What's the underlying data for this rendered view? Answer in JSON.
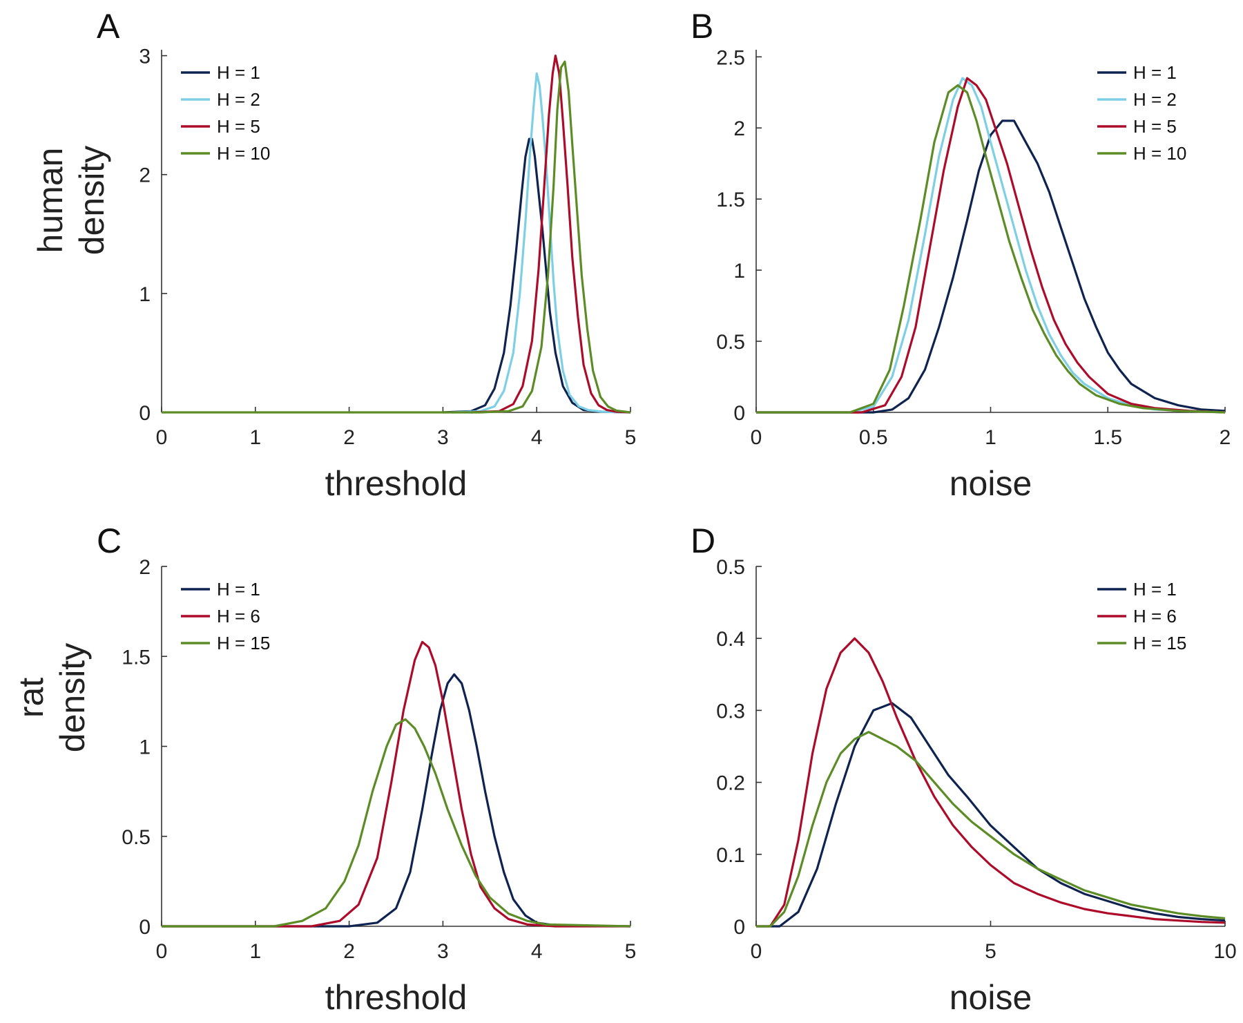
{
  "figure": {
    "row_labels": [
      {
        "line1": "human",
        "line2": "density"
      },
      {
        "line1": "rat",
        "line2": "density"
      }
    ]
  },
  "colors": {
    "H1": "#0f2350",
    "H2": "#7ccfe5",
    "H5_H6": "#ad0b2a",
    "H10_H15": "#5c8c25"
  },
  "chart_data": [
    {
      "panel": "A",
      "type": "line",
      "xlabel": "threshold",
      "ylabel": "",
      "xlim": [
        0,
        5
      ],
      "ylim": [
        0,
        3.05
      ],
      "xticks": [
        0,
        1,
        2,
        3,
        4,
        5
      ],
      "yticks": [
        0,
        1,
        2,
        3
      ],
      "legend_position": "top-left",
      "series": [
        {
          "name": "H = 1",
          "color": "#0f2350",
          "x": [
            3.0,
            3.3,
            3.45,
            3.55,
            3.65,
            3.72,
            3.78,
            3.84,
            3.88,
            3.92,
            3.95,
            3.98,
            4.02,
            4.06,
            4.1,
            4.14,
            4.2,
            4.28,
            4.38,
            4.5,
            4.7,
            5.0
          ],
          "y": [
            0,
            0.01,
            0.06,
            0.2,
            0.5,
            0.9,
            1.35,
            1.85,
            2.15,
            2.3,
            2.3,
            2.15,
            1.85,
            1.55,
            1.2,
            0.85,
            0.5,
            0.22,
            0.08,
            0.02,
            0.005,
            0
          ]
        },
        {
          "name": "H = 2",
          "color": "#7ccfe5",
          "x": [
            3.1,
            3.4,
            3.55,
            3.65,
            3.75,
            3.82,
            3.88,
            3.93,
            3.97,
            4.0,
            4.03,
            4.06,
            4.1,
            4.14,
            4.18,
            4.22,
            4.28,
            4.35,
            4.45,
            4.55,
            4.7,
            5.0
          ],
          "y": [
            0,
            0.01,
            0.05,
            0.18,
            0.5,
            1.0,
            1.6,
            2.2,
            2.6,
            2.85,
            2.75,
            2.5,
            2.1,
            1.6,
            1.1,
            0.7,
            0.35,
            0.15,
            0.05,
            0.02,
            0.005,
            0
          ]
        },
        {
          "name": "H = 5",
          "color": "#ad0b2a",
          "x": [
            3.3,
            3.6,
            3.75,
            3.85,
            3.95,
            4.02,
            4.08,
            4.13,
            4.17,
            4.2,
            4.24,
            4.28,
            4.33,
            4.38,
            4.44,
            4.5,
            4.58,
            4.66,
            4.75,
            4.85,
            5.0
          ],
          "y": [
            0,
            0.01,
            0.07,
            0.22,
            0.6,
            1.2,
            1.9,
            2.5,
            2.85,
            3.0,
            2.85,
            2.45,
            1.9,
            1.3,
            0.8,
            0.4,
            0.16,
            0.06,
            0.02,
            0.005,
            0
          ]
        },
        {
          "name": "H = 10",
          "color": "#5c8c25",
          "x": [
            3.4,
            3.7,
            3.85,
            3.95,
            4.05,
            4.12,
            4.18,
            4.22,
            4.26,
            4.3,
            4.34,
            4.38,
            4.43,
            4.48,
            4.54,
            4.6,
            4.68,
            4.76,
            4.85,
            5.0
          ],
          "y": [
            0,
            0.01,
            0.05,
            0.18,
            0.55,
            1.15,
            1.9,
            2.55,
            2.9,
            2.95,
            2.7,
            2.25,
            1.7,
            1.15,
            0.7,
            0.35,
            0.13,
            0.05,
            0.015,
            0
          ]
        },
        {
          "name": "",
          "color": "#5c8c25",
          "x": [
            0,
            3.4
          ],
          "y": [
            0,
            0
          ]
        }
      ]
    },
    {
      "panel": "B",
      "type": "line",
      "xlabel": "noise",
      "ylabel": "",
      "xlim": [
        0,
        2
      ],
      "ylim": [
        0,
        2.55
      ],
      "xticks": [
        0,
        0.5,
        1,
        1.5,
        2
      ],
      "yticks": [
        0,
        0.5,
        1,
        1.5,
        2,
        2.5
      ],
      "legend_position": "top-right",
      "series": [
        {
          "name": "H = 1",
          "color": "#0f2350",
          "x": [
            0,
            0.5,
            0.58,
            0.65,
            0.72,
            0.78,
            0.84,
            0.9,
            0.95,
            1.0,
            1.05,
            1.1,
            1.15,
            1.2,
            1.25,
            1.3,
            1.35,
            1.4,
            1.45,
            1.5,
            1.55,
            1.6,
            1.7,
            1.8,
            1.9,
            2.0
          ],
          "y": [
            0,
            0,
            0.02,
            0.1,
            0.3,
            0.6,
            0.95,
            1.35,
            1.7,
            1.95,
            2.05,
            2.05,
            1.9,
            1.75,
            1.55,
            1.3,
            1.05,
            0.8,
            0.6,
            0.42,
            0.3,
            0.2,
            0.1,
            0.05,
            0.02,
            0.01
          ]
        },
        {
          "name": "H = 2",
          "color": "#7ccfe5",
          "x": [
            0,
            0.4,
            0.5,
            0.58,
            0.65,
            0.72,
            0.78,
            0.84,
            0.88,
            0.92,
            0.96,
            1.0,
            1.05,
            1.1,
            1.15,
            1.2,
            1.25,
            1.3,
            1.35,
            1.4,
            1.5,
            1.6,
            1.7,
            1.85,
            2.0
          ],
          "y": [
            0,
            0,
            0.04,
            0.25,
            0.65,
            1.25,
            1.8,
            2.2,
            2.35,
            2.3,
            2.15,
            1.9,
            1.6,
            1.3,
            1.0,
            0.75,
            0.55,
            0.4,
            0.28,
            0.2,
            0.1,
            0.05,
            0.02,
            0.01,
            0
          ]
        },
        {
          "name": "H = 5",
          "color": "#ad0b2a",
          "x": [
            0,
            0.45,
            0.55,
            0.62,
            0.68,
            0.74,
            0.8,
            0.86,
            0.9,
            0.94,
            0.98,
            1.02,
            1.07,
            1.12,
            1.17,
            1.22,
            1.27,
            1.32,
            1.37,
            1.42,
            1.5,
            1.6,
            1.7,
            1.85,
            2.0
          ],
          "y": [
            0,
            0,
            0.05,
            0.25,
            0.6,
            1.15,
            1.7,
            2.15,
            2.35,
            2.3,
            2.2,
            2.0,
            1.75,
            1.45,
            1.15,
            0.88,
            0.65,
            0.48,
            0.35,
            0.25,
            0.13,
            0.06,
            0.03,
            0.01,
            0
          ]
        },
        {
          "name": "H = 10",
          "color": "#5c8c25",
          "x": [
            0,
            0.4,
            0.5,
            0.57,
            0.63,
            0.7,
            0.76,
            0.82,
            0.86,
            0.9,
            0.94,
            0.98,
            1.03,
            1.08,
            1.13,
            1.18,
            1.23,
            1.28,
            1.33,
            1.38,
            1.45,
            1.55,
            1.65,
            1.8,
            2.0
          ],
          "y": [
            0,
            0,
            0.06,
            0.3,
            0.75,
            1.35,
            1.9,
            2.25,
            2.3,
            2.25,
            2.05,
            1.8,
            1.5,
            1.2,
            0.95,
            0.72,
            0.55,
            0.4,
            0.29,
            0.2,
            0.12,
            0.06,
            0.03,
            0.01,
            0
          ]
        }
      ]
    },
    {
      "panel": "C",
      "type": "line",
      "xlabel": "threshold",
      "ylabel": "",
      "xlim": [
        0,
        5
      ],
      "ylim": [
        0,
        2
      ],
      "xticks": [
        0,
        1,
        2,
        3,
        4,
        5
      ],
      "yticks": [
        0,
        0.5,
        1,
        1.5,
        2
      ],
      "legend_position": "top-left",
      "series": [
        {
          "name": "H = 1",
          "color": "#0f2350",
          "x": [
            0,
            2.0,
            2.3,
            2.5,
            2.65,
            2.78,
            2.88,
            2.97,
            3.05,
            3.12,
            3.2,
            3.28,
            3.36,
            3.45,
            3.55,
            3.65,
            3.75,
            3.88,
            4.0,
            4.2,
            5.0
          ],
          "y": [
            0,
            0,
            0.02,
            0.1,
            0.3,
            0.65,
            0.95,
            1.2,
            1.35,
            1.4,
            1.35,
            1.2,
            1.0,
            0.75,
            0.5,
            0.3,
            0.15,
            0.06,
            0.02,
            0.005,
            0
          ]
        },
        {
          "name": "H = 6",
          "color": "#ad0b2a",
          "x": [
            0,
            1.6,
            1.9,
            2.1,
            2.3,
            2.45,
            2.58,
            2.7,
            2.78,
            2.85,
            2.92,
            3.0,
            3.1,
            3.2,
            3.3,
            3.4,
            3.55,
            3.7,
            3.9,
            4.2,
            5.0
          ],
          "y": [
            0,
            0,
            0.03,
            0.12,
            0.38,
            0.8,
            1.2,
            1.48,
            1.58,
            1.55,
            1.45,
            1.25,
            0.95,
            0.65,
            0.4,
            0.22,
            0.1,
            0.04,
            0.01,
            0,
            0
          ]
        },
        {
          "name": "H = 15",
          "color": "#5c8c25",
          "x": [
            0,
            1.2,
            1.5,
            1.75,
            1.95,
            2.1,
            2.25,
            2.4,
            2.5,
            2.6,
            2.7,
            2.8,
            2.92,
            3.05,
            3.2,
            3.35,
            3.5,
            3.7,
            3.9,
            4.1,
            5.0
          ],
          "y": [
            0,
            0,
            0.03,
            0.1,
            0.25,
            0.45,
            0.75,
            1.0,
            1.12,
            1.15,
            1.1,
            1.0,
            0.85,
            0.65,
            0.45,
            0.28,
            0.16,
            0.07,
            0.03,
            0.01,
            0
          ]
        }
      ]
    },
    {
      "panel": "D",
      "type": "line",
      "xlabel": "noise",
      "ylabel": "",
      "xlim": [
        0,
        10
      ],
      "ylim": [
        0,
        0.5
      ],
      "xticks": [
        0,
        5,
        10
      ],
      "yticks": [
        0,
        0.1,
        0.2,
        0.3,
        0.4,
        0.5
      ],
      "legend_position": "top-right",
      "series": [
        {
          "name": "H = 1",
          "color": "#0f2350",
          "x": [
            0,
            0.5,
            0.9,
            1.3,
            1.7,
            2.1,
            2.5,
            2.9,
            3.3,
            3.7,
            4.1,
            4.5,
            5.0,
            5.5,
            6.0,
            6.5,
            7.0,
            7.5,
            8.0,
            8.5,
            9.0,
            9.5,
            10.0
          ],
          "y": [
            0,
            0,
            0.02,
            0.08,
            0.17,
            0.25,
            0.3,
            0.31,
            0.29,
            0.25,
            0.21,
            0.18,
            0.14,
            0.11,
            0.08,
            0.06,
            0.045,
            0.035,
            0.025,
            0.018,
            0.013,
            0.01,
            0.008
          ]
        },
        {
          "name": "H = 6",
          "color": "#ad0b2a",
          "x": [
            0,
            0.3,
            0.6,
            0.9,
            1.2,
            1.5,
            1.8,
            2.1,
            2.4,
            2.7,
            3.0,
            3.4,
            3.8,
            4.2,
            4.6,
            5.0,
            5.5,
            6.0,
            6.5,
            7.0,
            7.5,
            8.0,
            8.5,
            9.0,
            9.5,
            10.0
          ],
          "y": [
            0,
            0,
            0.03,
            0.12,
            0.24,
            0.33,
            0.38,
            0.4,
            0.38,
            0.34,
            0.29,
            0.23,
            0.18,
            0.14,
            0.11,
            0.085,
            0.06,
            0.045,
            0.033,
            0.024,
            0.018,
            0.014,
            0.01,
            0.008,
            0.006,
            0.005
          ]
        },
        {
          "name": "H = 15",
          "color": "#5c8c25",
          "x": [
            0,
            0.3,
            0.6,
            0.9,
            1.2,
            1.5,
            1.8,
            2.1,
            2.4,
            2.7,
            3.0,
            3.4,
            3.8,
            4.2,
            4.6,
            5.0,
            5.5,
            6.0,
            6.5,
            7.0,
            7.5,
            8.0,
            8.5,
            9.0,
            9.5,
            10.0
          ],
          "y": [
            0,
            0,
            0.02,
            0.07,
            0.14,
            0.2,
            0.24,
            0.26,
            0.27,
            0.26,
            0.25,
            0.23,
            0.2,
            0.17,
            0.145,
            0.125,
            0.1,
            0.08,
            0.065,
            0.05,
            0.04,
            0.03,
            0.024,
            0.018,
            0.014,
            0.011
          ]
        }
      ]
    }
  ]
}
